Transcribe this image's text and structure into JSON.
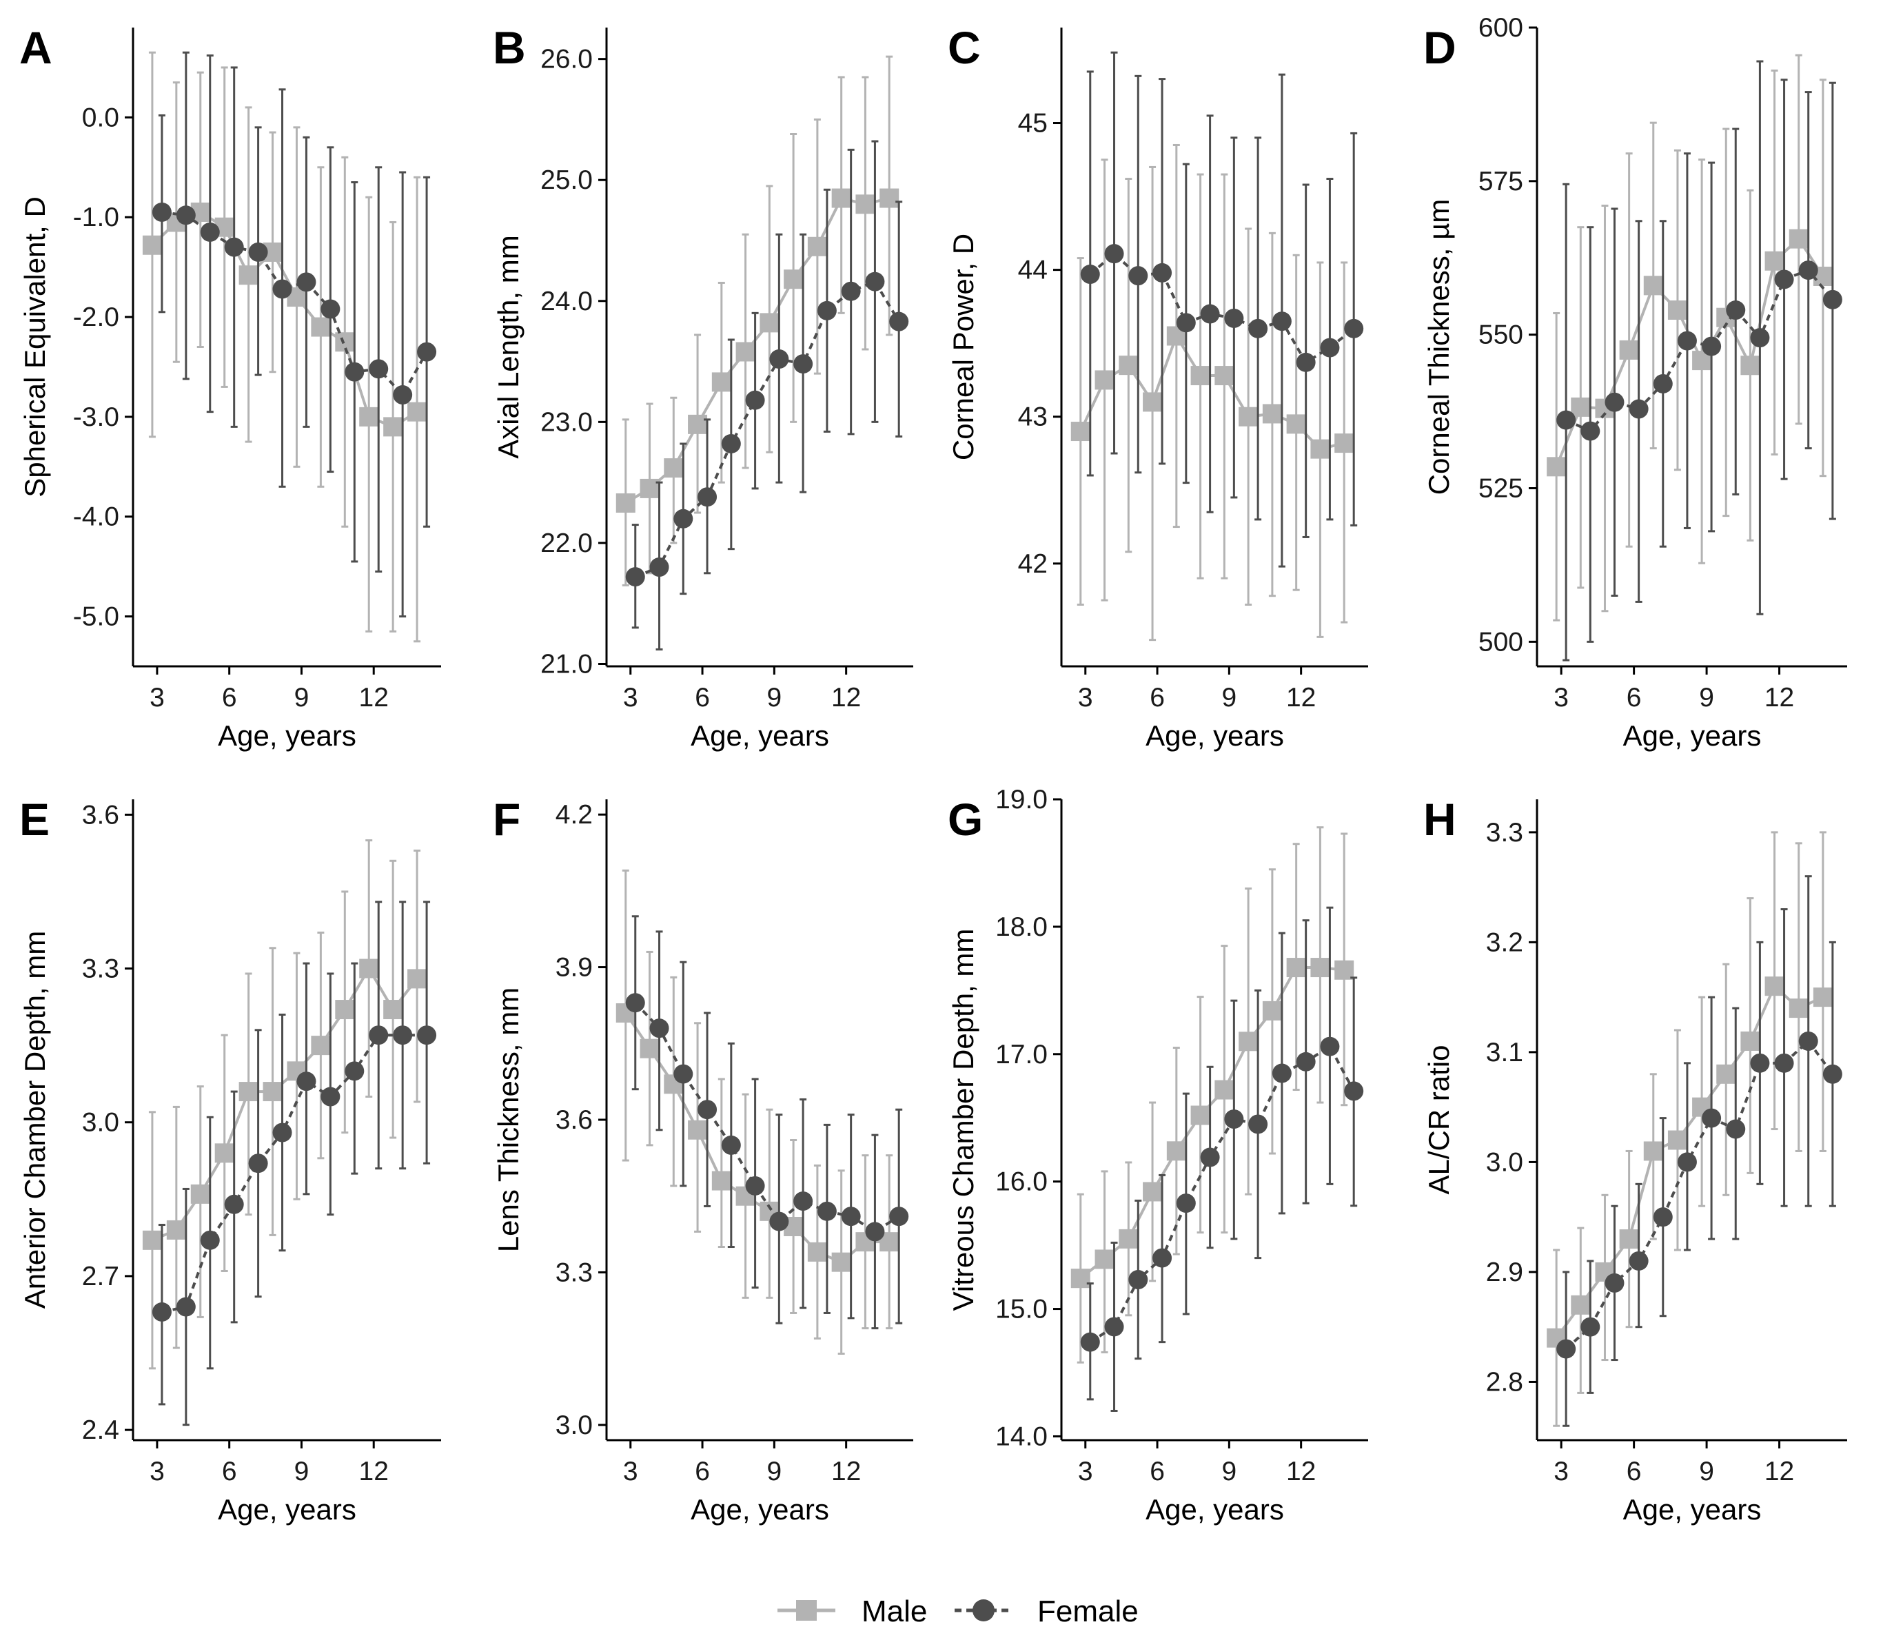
{
  "legend": {
    "male_label": "Male",
    "female_label": "Female"
  },
  "colors": {
    "male": "#b3b3b3",
    "female": "#4d4d4d",
    "axis": "#000000"
  },
  "chart_data": [
    {
      "panel": "A",
      "type": "line",
      "xlabel": "Age, years",
      "ylabel": "Spherical Equivalent, D",
      "xlim": [
        2,
        14.8
      ],
      "ylim": [
        -5.5,
        0.9
      ],
      "xticks": [
        3,
        6,
        9,
        12
      ],
      "xtick_labels": [
        "3",
        "6",
        "9",
        "12"
      ],
      "yticks": [
        0,
        -1,
        -2,
        -3,
        -4,
        -5
      ],
      "ytick_labels": [
        "0.0",
        "-1.0",
        "-2.0",
        "-3.0",
        "-4.0",
        "-5.0"
      ],
      "x": [
        3,
        4,
        5,
        6,
        7,
        8,
        9,
        10,
        11,
        12,
        13,
        14
      ],
      "series": [
        {
          "name": "Male",
          "values": [
            -1.28,
            -1.05,
            -0.95,
            -1.1,
            -1.58,
            -1.35,
            -1.8,
            -2.1,
            -2.25,
            -3.0,
            -3.1,
            -2.95
          ],
          "lower": [
            -3.2,
            -2.45,
            -2.3,
            -2.7,
            -3.25,
            -2.55,
            -3.5,
            -3.7,
            -4.1,
            -5.15,
            -5.15,
            -5.25
          ],
          "upper": [
            0.65,
            0.35,
            0.45,
            0.5,
            0.1,
            -0.15,
            -0.1,
            -0.5,
            -0.4,
            -0.8,
            -1.05,
            -0.6
          ]
        },
        {
          "name": "Female",
          "values": [
            -0.95,
            -0.98,
            -1.15,
            -1.3,
            -1.35,
            -1.72,
            -1.65,
            -1.92,
            -2.55,
            -2.52,
            -2.78,
            -2.35
          ],
          "lower": [
            -1.95,
            -2.62,
            -2.95,
            -3.1,
            -2.58,
            -3.7,
            -3.1,
            -3.55,
            -4.45,
            -4.55,
            -5.0,
            -4.1
          ],
          "upper": [
            0.02,
            0.65,
            0.62,
            0.5,
            -0.1,
            0.28,
            -0.2,
            -0.3,
            -0.65,
            -0.5,
            -0.55,
            -0.6
          ]
        }
      ]
    },
    {
      "panel": "B",
      "type": "line",
      "xlabel": "Age, years",
      "ylabel": "Axial Length, mm",
      "xlim": [
        2,
        14.8
      ],
      "ylim": [
        20.98,
        26.26
      ],
      "xticks": [
        3,
        6,
        9,
        12
      ],
      "xtick_labels": [
        "3",
        "6",
        "9",
        "12"
      ],
      "yticks": [
        21,
        22,
        23,
        24,
        25,
        26
      ],
      "ytick_labels": [
        "21.0",
        "22.0",
        "23.0",
        "24.0",
        "25.0",
        "26.0"
      ],
      "x": [
        3,
        4,
        5,
        6,
        7,
        8,
        9,
        10,
        11,
        12,
        13,
        14
      ],
      "series": [
        {
          "name": "Male",
          "values": [
            22.33,
            22.45,
            22.62,
            22.98,
            23.33,
            23.58,
            23.82,
            24.18,
            24.45,
            24.85,
            24.8,
            24.85
          ],
          "lower": [
            21.65,
            21.75,
            22.0,
            22.25,
            22.5,
            22.62,
            22.75,
            23.0,
            23.4,
            23.9,
            23.6,
            23.72
          ],
          "upper": [
            23.02,
            23.15,
            23.2,
            23.72,
            24.15,
            24.55,
            24.95,
            25.38,
            25.5,
            25.85,
            25.85,
            26.02
          ]
        },
        {
          "name": "Female",
          "values": [
            21.72,
            21.8,
            22.2,
            22.38,
            22.82,
            23.18,
            23.52,
            23.48,
            23.92,
            24.08,
            24.16,
            23.83
          ],
          "lower": [
            21.3,
            21.12,
            21.58,
            21.75,
            21.95,
            22.45,
            22.5,
            22.42,
            22.92,
            22.9,
            23.0,
            22.88
          ],
          "upper": [
            22.15,
            22.5,
            22.82,
            23.02,
            23.68,
            23.9,
            24.55,
            24.55,
            24.92,
            25.25,
            25.32,
            24.82
          ]
        }
      ]
    },
    {
      "panel": "C",
      "type": "line",
      "xlabel": "Age, years",
      "ylabel": "Corneal Power, D",
      "xlim": [
        2,
        14.8
      ],
      "ylim": [
        41.3,
        45.65
      ],
      "xticks": [
        3,
        6,
        9,
        12
      ],
      "xtick_labels": [
        "3",
        "6",
        "9",
        "12"
      ],
      "yticks": [
        42,
        43,
        44,
        45
      ],
      "ytick_labels": [
        "42",
        "43",
        "44",
        "45"
      ],
      "x": [
        3,
        4,
        5,
        6,
        7,
        8,
        9,
        10,
        11,
        12,
        13,
        14
      ],
      "series": [
        {
          "name": "Male",
          "values": [
            42.9,
            43.25,
            43.35,
            43.1,
            43.55,
            43.28,
            43.28,
            43.0,
            43.02,
            42.95,
            42.78,
            42.82
          ],
          "lower": [
            41.72,
            41.75,
            42.08,
            41.48,
            42.25,
            41.9,
            41.9,
            41.72,
            41.78,
            41.82,
            41.5,
            41.6
          ],
          "upper": [
            44.08,
            44.75,
            44.62,
            44.7,
            44.85,
            44.65,
            44.65,
            44.28,
            44.25,
            44.1,
            44.05,
            44.05
          ]
        },
        {
          "name": "Female",
          "values": [
            43.97,
            44.11,
            43.96,
            43.98,
            43.64,
            43.7,
            43.67,
            43.6,
            43.65,
            43.37,
            43.47,
            43.6
          ],
          "lower": [
            42.6,
            42.75,
            42.62,
            42.68,
            42.55,
            42.35,
            42.45,
            42.3,
            41.98,
            42.18,
            42.3,
            42.26
          ],
          "upper": [
            45.35,
            45.48,
            45.32,
            45.3,
            44.72,
            45.05,
            44.9,
            44.9,
            45.33,
            44.58,
            44.62,
            44.93
          ]
        }
      ]
    },
    {
      "panel": "D",
      "type": "line",
      "xlabel": "Age, years",
      "ylabel": "Corneal Thickness, µm",
      "xlim": [
        2,
        14.8
      ],
      "ylim": [
        496,
        600
      ],
      "xticks": [
        3,
        6,
        9,
        12
      ],
      "xtick_labels": [
        "3",
        "6",
        "9",
        "12"
      ],
      "yticks": [
        500,
        525,
        550,
        575,
        600
      ],
      "ytick_labels": [
        "500",
        "525",
        "550",
        "575",
        "600"
      ],
      "x": [
        3,
        4,
        5,
        6,
        7,
        8,
        9,
        10,
        11,
        12,
        13,
        14
      ],
      "series": [
        {
          "name": "Male",
          "values": [
            528.5,
            538.2,
            538.0,
            547.5,
            558.0,
            554.0,
            545.8,
            552.8,
            545.0,
            562.0,
            565.6,
            559.5
          ],
          "lower": [
            503.5,
            508.8,
            505.0,
            515.5,
            531.5,
            528.0,
            512.8,
            520.5,
            516.5,
            530.5,
            535.5,
            527.0
          ],
          "upper": [
            553.5,
            567.5,
            571.0,
            579.5,
            584.5,
            580.0,
            578.5,
            583.5,
            573.5,
            593.0,
            595.5,
            591.5
          ]
        },
        {
          "name": "Female",
          "values": [
            536.1,
            534.3,
            539.0,
            537.9,
            542.0,
            549.0,
            548.1,
            554.0,
            549.5,
            559.0,
            560.5,
            555.7
          ],
          "lower": [
            497.0,
            500.0,
            507.5,
            506.5,
            515.5,
            518.5,
            518.0,
            524.0,
            504.5,
            526.5,
            531.5,
            520.0
          ],
          "upper": [
            574.5,
            567.5,
            570.5,
            568.5,
            568.5,
            579.5,
            578.0,
            583.5,
            594.5,
            591.5,
            589.5,
            591.0
          ]
        }
      ]
    },
    {
      "panel": "E",
      "type": "line",
      "xlabel": "Age, years",
      "ylabel": "Anterior Chamber Depth, mm",
      "xlim": [
        2,
        14.8
      ],
      "ylim": [
        2.38,
        3.63
      ],
      "xticks": [
        3,
        6,
        9,
        12
      ],
      "xtick_labels": [
        "3",
        "6",
        "9",
        "12"
      ],
      "yticks": [
        2.4,
        2.7,
        3.0,
        3.3,
        3.6
      ],
      "ytick_labels": [
        "2.4",
        "2.7",
        "3.0",
        "3.3",
        "3.6"
      ],
      "x": [
        3,
        4,
        5,
        6,
        7,
        8,
        9,
        10,
        11,
        12,
        13,
        14
      ],
      "series": [
        {
          "name": "Male",
          "values": [
            2.77,
            2.79,
            2.86,
            2.94,
            3.06,
            3.06,
            3.1,
            3.15,
            3.22,
            3.3,
            3.22,
            3.28
          ],
          "lower": [
            2.52,
            2.56,
            2.62,
            2.71,
            2.82,
            2.78,
            2.85,
            2.93,
            2.98,
            3.05,
            2.97,
            3.04
          ],
          "upper": [
            3.02,
            3.03,
            3.07,
            3.17,
            3.29,
            3.34,
            3.33,
            3.37,
            3.45,
            3.55,
            3.51,
            3.53
          ]
        },
        {
          "name": "Female",
          "values": [
            2.63,
            2.64,
            2.77,
            2.84,
            2.92,
            2.98,
            3.08,
            3.05,
            3.1,
            3.17,
            3.17,
            3.17
          ],
          "lower": [
            2.45,
            2.41,
            2.52,
            2.61,
            2.66,
            2.75,
            2.86,
            2.82,
            2.9,
            2.91,
            2.91,
            2.92
          ],
          "upper": [
            2.8,
            2.87,
            3.01,
            3.06,
            3.18,
            3.21,
            3.31,
            3.29,
            3.31,
            3.43,
            3.43,
            3.43
          ]
        }
      ]
    },
    {
      "panel": "F",
      "type": "line",
      "xlabel": "Age, years",
      "ylabel": "Lens Thickness, mm",
      "xlim": [
        2,
        14.8
      ],
      "ylim": [
        2.97,
        4.23
      ],
      "xticks": [
        3,
        6,
        9,
        12
      ],
      "xtick_labels": [
        "3",
        "6",
        "9",
        "12"
      ],
      "yticks": [
        3.0,
        3.3,
        3.6,
        3.9,
        4.2
      ],
      "ytick_labels": [
        "3.0",
        "3.3",
        "3.6",
        "3.9",
        "4.2"
      ],
      "x": [
        3,
        4,
        5,
        6,
        7,
        8,
        9,
        10,
        11,
        12,
        13,
        14
      ],
      "series": [
        {
          "name": "Male",
          "values": [
            3.81,
            3.74,
            3.67,
            3.58,
            3.48,
            3.45,
            3.42,
            3.39,
            3.34,
            3.32,
            3.36,
            3.36
          ],
          "lower": [
            3.52,
            3.55,
            3.47,
            3.38,
            3.35,
            3.25,
            3.25,
            3.22,
            3.17,
            3.14,
            3.19,
            3.19
          ],
          "upper": [
            4.09,
            3.93,
            3.88,
            3.79,
            3.68,
            3.65,
            3.62,
            3.56,
            3.51,
            3.5,
            3.53,
            3.53
          ]
        },
        {
          "name": "Female",
          "values": [
            3.83,
            3.78,
            3.69,
            3.62,
            3.55,
            3.47,
            3.4,
            3.44,
            3.42,
            3.41,
            3.38,
            3.41
          ],
          "lower": [
            3.66,
            3.58,
            3.47,
            3.43,
            3.35,
            3.27,
            3.2,
            3.23,
            3.22,
            3.21,
            3.19,
            3.2
          ],
          "upper": [
            4.0,
            3.97,
            3.91,
            3.81,
            3.75,
            3.68,
            3.61,
            3.64,
            3.59,
            3.61,
            3.57,
            3.62
          ]
        }
      ]
    },
    {
      "panel": "G",
      "type": "line",
      "xlabel": "Age, years",
      "ylabel": "Vitreous Chamber Depth, mm",
      "xlim": [
        2,
        14.8
      ],
      "ylim": [
        13.97,
        19.0
      ],
      "xticks": [
        3,
        6,
        9,
        12
      ],
      "xtick_labels": [
        "3",
        "6",
        "9",
        "12"
      ],
      "yticks": [
        14,
        15,
        16,
        17,
        18,
        19
      ],
      "ytick_labels": [
        "14.0",
        "15.0",
        "16.0",
        "17.0",
        "18.0",
        "19.0"
      ],
      "x": [
        3,
        4,
        5,
        6,
        7,
        8,
        9,
        10,
        11,
        12,
        13,
        14
      ],
      "series": [
        {
          "name": "Male",
          "values": [
            15.24,
            15.39,
            15.55,
            15.92,
            16.24,
            16.52,
            16.72,
            17.1,
            17.34,
            17.68,
            17.68,
            17.66
          ],
          "lower": [
            14.58,
            14.66,
            14.95,
            15.22,
            15.43,
            15.6,
            15.6,
            15.9,
            16.22,
            16.72,
            16.62,
            16.6
          ],
          "upper": [
            15.9,
            16.08,
            16.15,
            16.62,
            17.05,
            17.45,
            17.85,
            18.3,
            18.45,
            18.65,
            18.78,
            18.73
          ]
        },
        {
          "name": "Female",
          "values": [
            14.74,
            14.86,
            15.23,
            15.4,
            15.83,
            16.19,
            16.49,
            16.45,
            16.85,
            16.94,
            17.06,
            16.71
          ],
          "lower": [
            14.29,
            14.2,
            14.61,
            14.74,
            14.96,
            15.48,
            15.55,
            15.4,
            15.75,
            15.83,
            15.98,
            15.81
          ],
          "upper": [
            15.2,
            15.52,
            15.85,
            16.05,
            16.69,
            16.9,
            17.42,
            17.5,
            17.95,
            18.05,
            18.15,
            17.6
          ]
        }
      ]
    },
    {
      "panel": "H",
      "type": "line",
      "xlabel": "Age, years",
      "ylabel": "AL/CR ratio",
      "xlim": [
        2,
        14.8
      ],
      "ylim": [
        2.747,
        3.33
      ],
      "xticks": [
        3,
        6,
        9,
        12
      ],
      "xtick_labels": [
        "3",
        "6",
        "9",
        "12"
      ],
      "yticks": [
        2.8,
        2.9,
        3.0,
        3.1,
        3.2,
        3.3
      ],
      "ytick_labels": [
        "2.8",
        "2.9",
        "3.0",
        "3.1",
        "3.2",
        "3.3"
      ],
      "x": [
        3,
        4,
        5,
        6,
        7,
        8,
        9,
        10,
        11,
        12,
        13,
        14
      ],
      "series": [
        {
          "name": "Male",
          "values": [
            2.84,
            2.87,
            2.9,
            2.93,
            3.01,
            3.02,
            3.05,
            3.08,
            3.11,
            3.16,
            3.14,
            3.15
          ],
          "lower": [
            2.76,
            2.79,
            2.82,
            2.85,
            2.93,
            2.92,
            2.96,
            2.97,
            2.99,
            3.03,
            3.01,
            3.01
          ],
          "upper": [
            2.92,
            2.94,
            2.97,
            3.01,
            3.08,
            3.12,
            3.15,
            3.18,
            3.24,
            3.3,
            3.29,
            3.3
          ]
        },
        {
          "name": "Female",
          "values": [
            2.83,
            2.85,
            2.89,
            2.91,
            2.95,
            3.0,
            3.04,
            3.03,
            3.09,
            3.09,
            3.11,
            3.08
          ],
          "lower": [
            2.76,
            2.79,
            2.82,
            2.85,
            2.86,
            2.92,
            2.93,
            2.93,
            2.98,
            2.96,
            2.96,
            2.96
          ],
          "upper": [
            2.9,
            2.91,
            2.96,
            2.98,
            3.04,
            3.09,
            3.15,
            3.14,
            3.2,
            3.23,
            3.26,
            3.2
          ]
        }
      ]
    }
  ]
}
